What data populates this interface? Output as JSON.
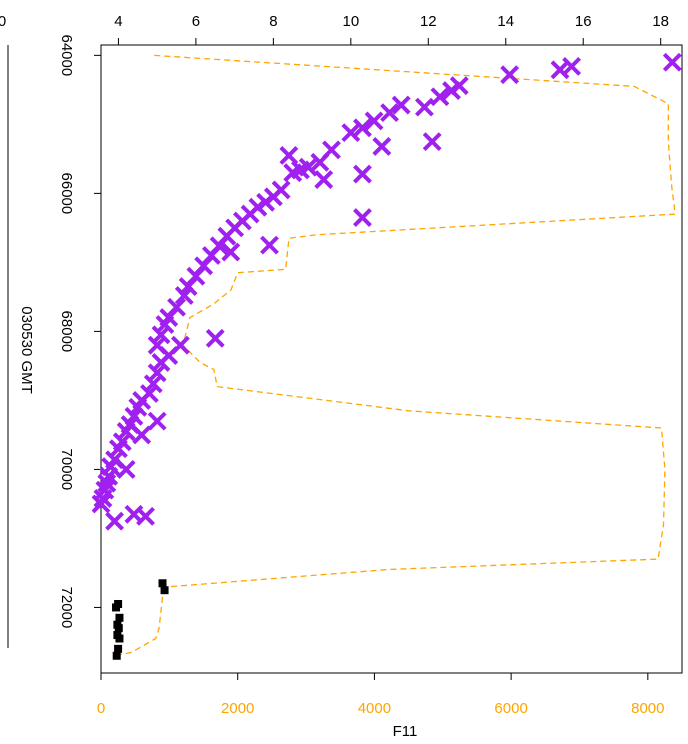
{
  "chart_data": {
    "type": "scatter",
    "title": "",
    "side_label": "030530 GMT",
    "colors": {
      "cross": "#a020f0",
      "square": "#000000",
      "line": "#ffa500",
      "axes": "#000000"
    },
    "bottom_axis": {
      "label": "F11",
      "range": [
        0,
        8500
      ],
      "ticks": [
        "0",
        "2000",
        "4000",
        "6000",
        "8000"
      ],
      "tick_values": [
        0,
        2000,
        4000,
        6000,
        8000
      ]
    },
    "top_axis": {
      "label": "",
      "range": [
        3.55,
        18.55
      ],
      "ticks": [
        "4",
        "6",
        "8",
        "10",
        "12",
        "14",
        "16",
        "18"
      ],
      "tick_values": [
        4,
        6,
        8,
        10,
        12,
        14,
        16,
        18
      ]
    },
    "left_axis": {
      "label": "",
      "range": [
        63850,
        72950
      ],
      "reversed": true,
      "ticks": [
        "64000",
        "66000",
        "68000",
        "70000",
        "72000"
      ],
      "tick_values": [
        64000,
        66000,
        68000,
        70000,
        72000
      ]
    },
    "partial_tick_label": "0",
    "series": [
      {
        "marker": "x",
        "axis": "top",
        "points": [
          [
            18.3,
            64100
          ],
          [
            15.7,
            64160
          ],
          [
            15.4,
            64210
          ],
          [
            14.1,
            64280
          ],
          [
            12.8,
            64440
          ],
          [
            12.6,
            64510
          ],
          [
            12.3,
            64600
          ],
          [
            11.9,
            64750
          ],
          [
            11.3,
            64720
          ],
          [
            11.0,
            64830
          ],
          [
            10.6,
            64950
          ],
          [
            10.3,
            65050
          ],
          [
            10.0,
            65120
          ],
          [
            10.8,
            65320
          ],
          [
            12.1,
            65250
          ],
          [
            9.5,
            65370
          ],
          [
            9.2,
            65550
          ],
          [
            8.9,
            65620
          ],
          [
            8.7,
            65660
          ],
          [
            8.5,
            65700
          ],
          [
            9.3,
            65800
          ],
          [
            10.3,
            65720
          ],
          [
            8.2,
            65950
          ],
          [
            8.0,
            66050
          ],
          [
            7.8,
            66130
          ],
          [
            7.6,
            66200
          ],
          [
            7.4,
            66300
          ],
          [
            7.2,
            66400
          ],
          [
            7.0,
            66500
          ],
          [
            6.8,
            66620
          ],
          [
            6.6,
            66760
          ],
          [
            6.4,
            66900
          ],
          [
            6.2,
            67050
          ],
          [
            6.0,
            67200
          ],
          [
            5.8,
            67350
          ],
          [
            5.7,
            67480
          ],
          [
            5.5,
            67650
          ],
          [
            5.3,
            67800
          ],
          [
            5.2,
            67900
          ],
          [
            5.1,
            68050
          ],
          [
            5.0,
            68200
          ],
          [
            5.3,
            68350
          ],
          [
            5.1,
            68450
          ],
          [
            5.0,
            68600
          ],
          [
            4.9,
            68760
          ],
          [
            4.8,
            68900
          ],
          [
            4.6,
            69000
          ],
          [
            4.5,
            69100
          ],
          [
            4.4,
            69230
          ],
          [
            4.3,
            69350
          ],
          [
            4.2,
            69450
          ],
          [
            4.1,
            69600
          ],
          [
            4.0,
            69700
          ],
          [
            3.9,
            69860
          ],
          [
            3.8,
            69960
          ],
          [
            3.75,
            70100
          ],
          [
            3.7,
            70200
          ],
          [
            3.65,
            70300
          ],
          [
            3.6,
            70420
          ],
          [
            3.55,
            70500
          ],
          [
            4.7,
            70680
          ],
          [
            10.3,
            66350
          ],
          [
            8.4,
            65450
          ],
          [
            7.9,
            66750
          ],
          [
            6.9,
            66850
          ],
          [
            6.5,
            68100
          ],
          [
            5.6,
            68200
          ],
          [
            5.0,
            69300
          ],
          [
            4.6,
            69500
          ],
          [
            4.2,
            70000
          ],
          [
            3.9,
            70750
          ],
          [
            4.4,
            70650
          ]
        ]
      },
      {
        "marker": "square",
        "axis": "bottom",
        "points": [
          [
            250,
            71950
          ],
          [
            220,
            72000
          ],
          [
            270,
            72150
          ],
          [
            240,
            72250
          ],
          [
            260,
            72300
          ],
          [
            240,
            72400
          ],
          [
            270,
            72450
          ],
          [
            250,
            72600
          ],
          [
            230,
            72700
          ],
          [
            900,
            71650
          ],
          [
            930,
            71750
          ]
        ]
      }
    ],
    "line": {
      "style": "dashed",
      "axis": "bottom",
      "points": [
        [
          780,
          64000
        ],
        [
          7800,
          64450
        ],
        [
          8300,
          64700
        ],
        [
          8300,
          65250
        ],
        [
          8350,
          65900
        ],
        [
          8400,
          66300
        ],
        [
          3150,
          66600
        ],
        [
          2750,
          66650
        ],
        [
          2700,
          67100
        ],
        [
          2000,
          67150
        ],
        [
          1900,
          67400
        ],
        [
          1650,
          67600
        ],
        [
          1300,
          67800
        ],
        [
          1200,
          68200
        ],
        [
          1450,
          68450
        ],
        [
          1650,
          68550
        ],
        [
          1700,
          68800
        ],
        [
          4500,
          69150
        ],
        [
          8200,
          69400
        ],
        [
          8250,
          70000
        ],
        [
          8230,
          70800
        ],
        [
          8150,
          71300
        ],
        [
          4200,
          71450
        ],
        [
          1000,
          71700
        ],
        [
          900,
          71850
        ],
        [
          850,
          72300
        ],
        [
          800,
          72450
        ],
        [
          450,
          72650
        ],
        [
          200,
          72700
        ]
      ]
    }
  }
}
